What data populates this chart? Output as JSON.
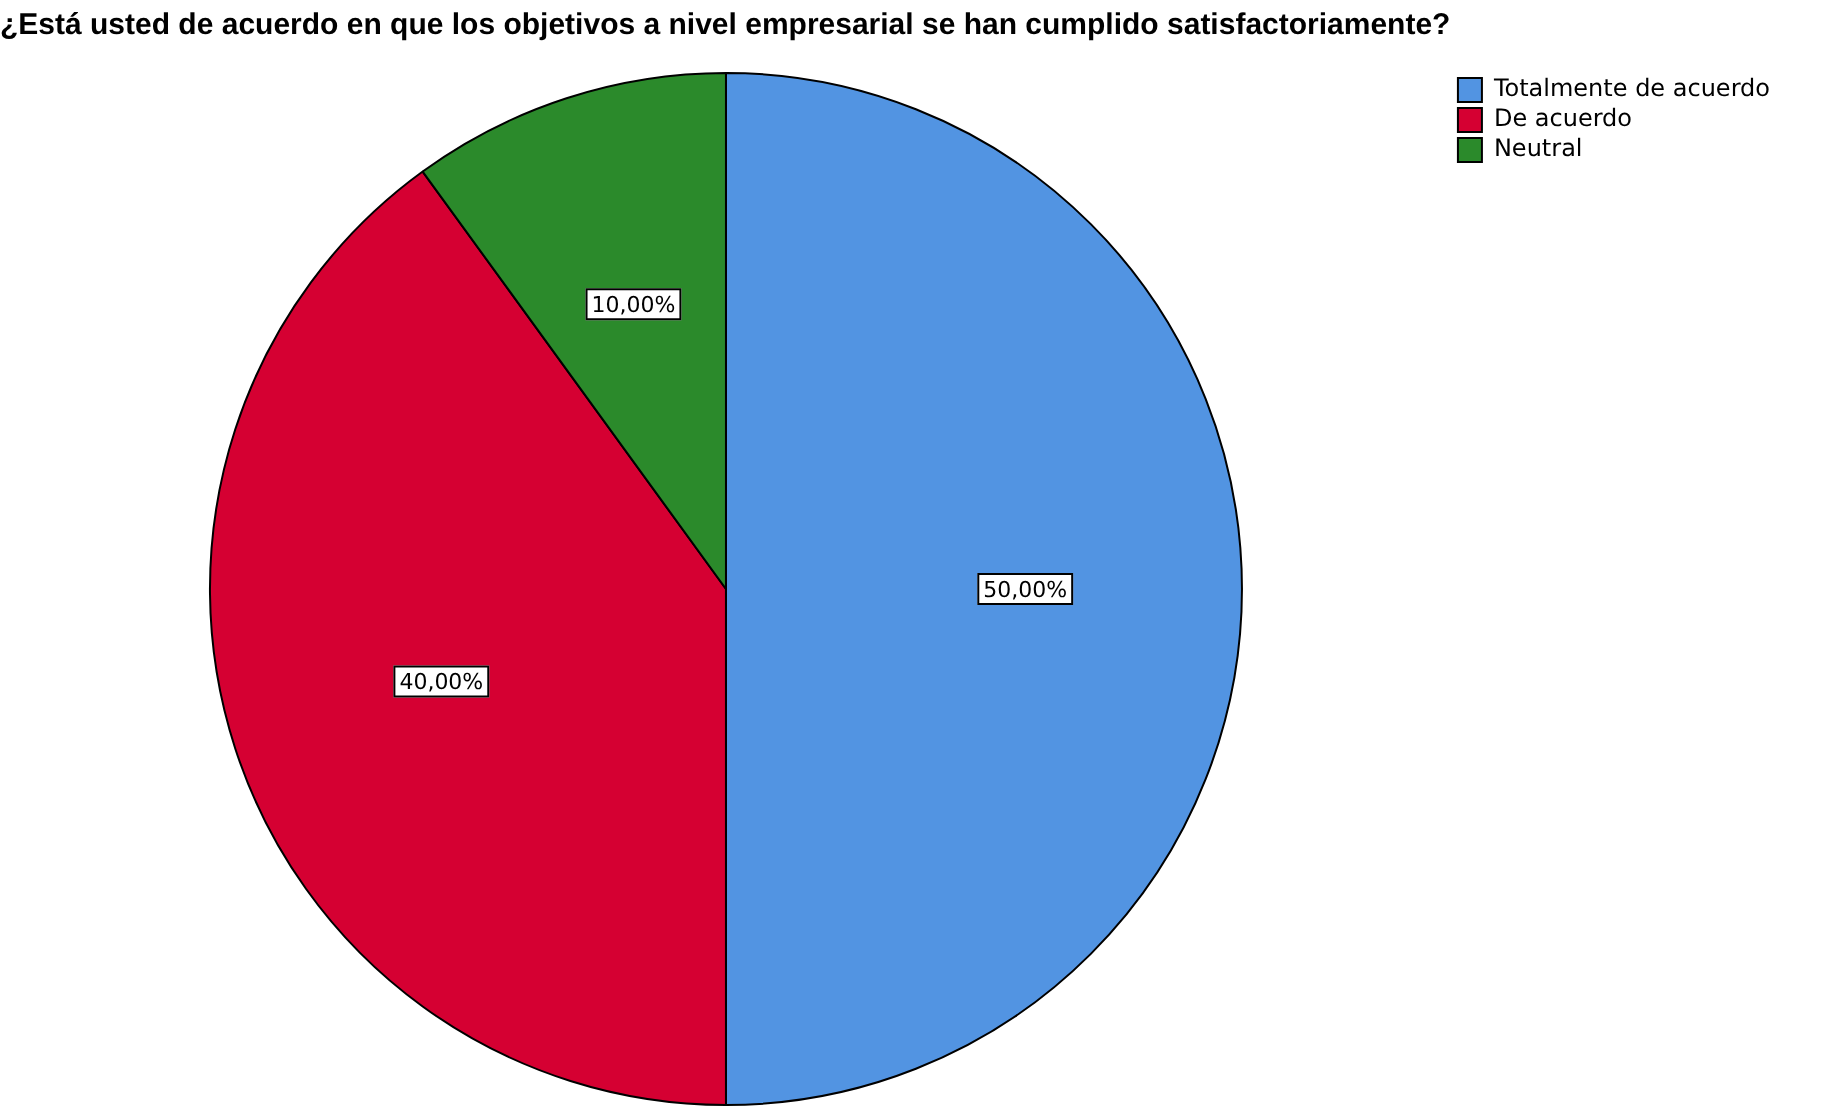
{
  "chart_data": {
    "type": "pie",
    "title": "¿Está usted de acuerdo en que los objetivos a nivel empresarial se han cumplido satisfactoriamente?",
    "categories": [
      "Totalmente de acuerdo",
      "De acuerdo",
      "Neutral"
    ],
    "values": [
      50,
      40,
      10
    ],
    "colors": [
      "#5294e2",
      "#d50032",
      "#2b8a2b"
    ],
    "value_labels": [
      "50,00%",
      "40,00%",
      "10,00%"
    ],
    "legend": "top right"
  }
}
